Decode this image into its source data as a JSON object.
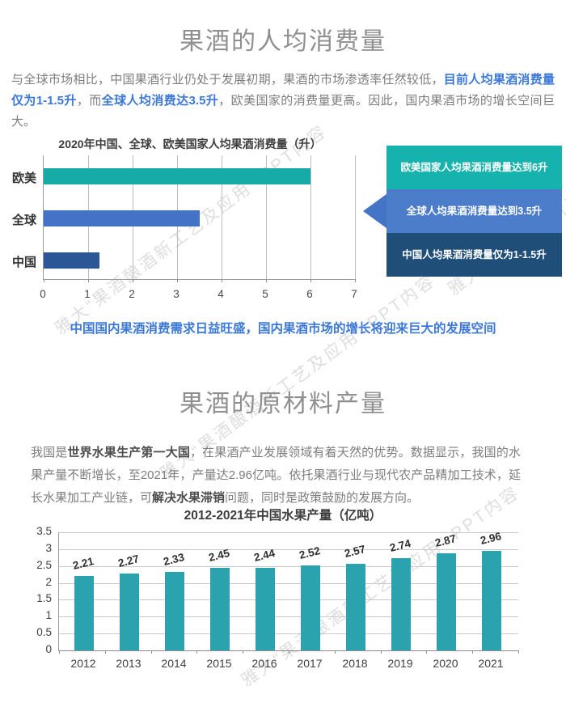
{
  "watermark": {
    "text": "雅大“果酒酿酒新工艺及应用” PPT内容"
  },
  "section1": {
    "title": "果酒的人均消费量",
    "para": {
      "p1": "与全球市场相比，中国果酒行业仍处于发展初期，果酒的市场渗透率任然较低，",
      "p2_blue": "目前人均果酒消费量仅为1-1.5升",
      "p3": "，而",
      "p4_blue": "全球人均消费达3.5升",
      "p5": "，欧美国家的消费量更高。因此，国内果酒市场的增长空间巨大。"
    },
    "callouts": [
      {
        "text": "欧美国家人均果酒消费量达到6升",
        "color": "#15B2AE"
      },
      {
        "text": "全球人均果酒消费量达到3.5升",
        "color": "#4B7DCB"
      },
      {
        "text": "中国人均果酒消费量仅为1-1.5升",
        "color": "#1F4E79"
      }
    ],
    "arrow_color": "#4374C6",
    "slogan": "中国国内果酒消费需求日益旺盛，国内果酒市场的增长将迎来巨大的发展空间"
  },
  "section2": {
    "title": "果酒的原材料产量",
    "para": {
      "p1": "我国是",
      "p2_bold": "世界水果生产第一大国",
      "p3": "，在果酒产业发展领域有着天然的优势。数据显示，我国的水果产量不断增长，至2021年，产量达2.96亿吨。依托果酒行业与现代农产品精加工技术，延长水果加工产业链，可",
      "p4_bold": "解决水果滞销",
      "p5": "问题，同时是政策鼓励的发展方向。"
    }
  },
  "chart_data": [
    {
      "type": "bar",
      "orientation": "horizontal",
      "title": "2020年中国、全球、欧美国家人均果酒消费量（升）",
      "categories": [
        "欧美",
        "全球",
        "中国"
      ],
      "values": [
        6,
        3.5,
        1.25
      ],
      "bar_colors": [
        "#17ABA8",
        "#4472C4",
        "#2B5797"
      ],
      "xlim": [
        0,
        7
      ],
      "xticks": [
        0,
        1,
        2,
        3,
        4,
        5,
        6,
        7
      ],
      "xlabel": "",
      "ylabel": "",
      "grid": true,
      "legend": false
    },
    {
      "type": "bar",
      "orientation": "vertical",
      "title": "2012-2021年中国水果产量（亿吨）",
      "categories": [
        "2012",
        "2013",
        "2014",
        "2015",
        "2016",
        "2017",
        "2018",
        "2019",
        "2020",
        "2021"
      ],
      "values": [
        2.21,
        2.27,
        2.33,
        2.45,
        2.44,
        2.52,
        2.57,
        2.74,
        2.87,
        2.96
      ],
      "bar_color": "#2AA3AF",
      "ylim": [
        0,
        3.5
      ],
      "yticks": [
        3.5,
        3,
        2.5,
        2,
        1.5,
        1,
        0.5,
        0
      ],
      "grid": true,
      "legend": false,
      "data_labels": true
    }
  ]
}
